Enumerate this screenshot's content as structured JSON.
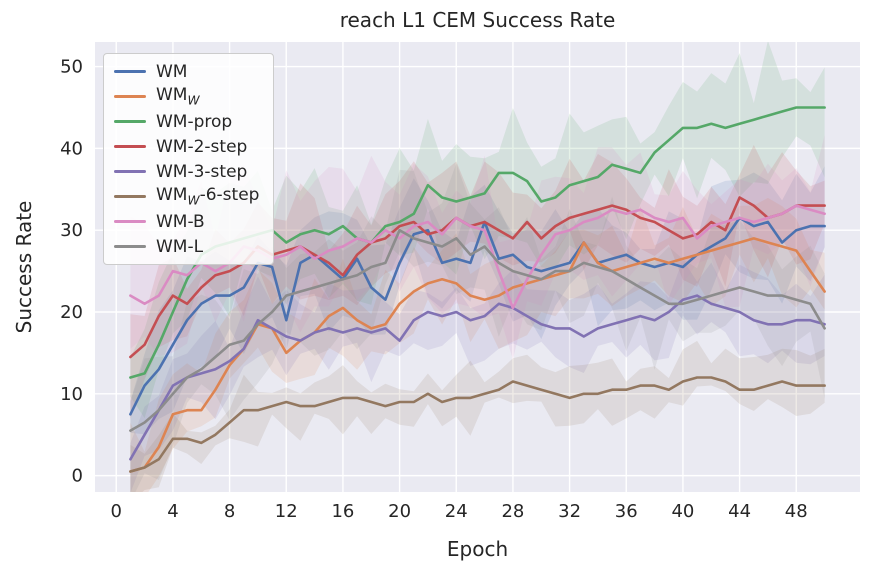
{
  "chart_data": {
    "type": "line",
    "title": "reach L1 CEM Success Rate",
    "xlabel": "Epoch",
    "ylabel": "Success Rate",
    "xlim": [
      -1.5,
      52.5
    ],
    "ylim": [
      -2,
      53
    ],
    "xticks": [
      0,
      4,
      8,
      12,
      16,
      20,
      24,
      28,
      32,
      36,
      40,
      44,
      48
    ],
    "yticks": [
      0,
      10,
      20,
      30,
      40,
      50
    ],
    "grid": true,
    "legend_position": "upper left",
    "background": "#eaeaf2",
    "grid_color": "#ffffff",
    "x": [
      1,
      2,
      3,
      4,
      5,
      6,
      7,
      8,
      9,
      10,
      11,
      12,
      13,
      14,
      15,
      16,
      17,
      18,
      19,
      20,
      21,
      22,
      23,
      24,
      25,
      26,
      27,
      28,
      29,
      30,
      31,
      32,
      33,
      34,
      35,
      36,
      37,
      38,
      39,
      40,
      41,
      42,
      43,
      44,
      45,
      46,
      47,
      48,
      49,
      50
    ],
    "series": [
      {
        "name": "WM",
        "label": {
          "main": "WM",
          "sub": "",
          "rest": ""
        },
        "color": "#4C72B0",
        "band": 5.5,
        "values": [
          7.5,
          11,
          13,
          16,
          19,
          21,
          22,
          22,
          23,
          26,
          25.5,
          19,
          26,
          27,
          25.5,
          24,
          26.5,
          23,
          21.5,
          26,
          29.5,
          30,
          26,
          26.5,
          26,
          31,
          26.5,
          27,
          25.5,
          25,
          25.5,
          26,
          28.5,
          26,
          26.5,
          27,
          26,
          25.5,
          26,
          25.5,
          27,
          28,
          29,
          31.5,
          30.5,
          31,
          28.5,
          30,
          30.5,
          30.5
        ]
      },
      {
        "name": "WM_W",
        "label": {
          "main": "WM",
          "sub": "W",
          "rest": ""
        },
        "color": "#DD8452",
        "band": 4.5,
        "values": [
          0.5,
          1,
          3.5,
          7.5,
          8,
          8,
          10.5,
          13.5,
          15.5,
          18.5,
          18,
          15,
          16.5,
          17.5,
          19.5,
          20.5,
          19,
          18,
          18.5,
          21,
          22.5,
          23.5,
          24,
          23.5,
          22,
          21.5,
          22,
          23,
          23.5,
          24,
          24.5,
          25,
          28.5,
          26,
          25,
          25.5,
          26,
          26.5,
          26,
          26.5,
          27,
          27.5,
          28,
          28.5,
          29,
          28.5,
          28,
          27.5,
          25,
          22.5
        ]
      },
      {
        "name": "WM-prop",
        "label": {
          "main": "WM-prop",
          "sub": "",
          "rest": ""
        },
        "color": "#55A868",
        "band": 6,
        "values": [
          12,
          12.5,
          16,
          20,
          24,
          27,
          28,
          28.5,
          29,
          29.5,
          30,
          28.5,
          29.5,
          30,
          29.5,
          30.5,
          29,
          28.5,
          30.5,
          31,
          32,
          35.5,
          34,
          33.5,
          34,
          34.5,
          37,
          37,
          36,
          33.5,
          34,
          35.5,
          36,
          36.5,
          38,
          37.5,
          37,
          39.5,
          41,
          42.5,
          42.5,
          43,
          42.5,
          43,
          43.5,
          44,
          44.5,
          45,
          45,
          45
        ]
      },
      {
        "name": "WM-2-step",
        "label": {
          "main": "WM-2-step",
          "sub": "",
          "rest": ""
        },
        "color": "#C44E52",
        "band": 5,
        "values": [
          14.5,
          16,
          19.5,
          22,
          21,
          23,
          24.5,
          25,
          26,
          28,
          27,
          27.5,
          28,
          27,
          26,
          24.5,
          27,
          28.5,
          29,
          30.5,
          31,
          29.5,
          30,
          31.5,
          30.5,
          31,
          30,
          29,
          31,
          29,
          30.5,
          31.5,
          32,
          32.5,
          33,
          32.5,
          31.5,
          31,
          30,
          29,
          29.5,
          31,
          30,
          34,
          33,
          31.5,
          32,
          33,
          33,
          33
        ]
      },
      {
        "name": "WM-3-step",
        "label": {
          "main": "WM-3-step",
          "sub": "",
          "rest": ""
        },
        "color": "#8172B3",
        "band": 4,
        "values": [
          2,
          5,
          8,
          11,
          12,
          12.5,
          13,
          14,
          15.5,
          19,
          18,
          17,
          16.5,
          17.5,
          18,
          17.5,
          18,
          17.5,
          18,
          16.5,
          19,
          20,
          19.5,
          20,
          19,
          19.5,
          21,
          20.5,
          19.5,
          18.5,
          18,
          18,
          17,
          18,
          18.5,
          19,
          19.5,
          19,
          20,
          21.5,
          22,
          21,
          20.5,
          20,
          19,
          18.5,
          18.5,
          19,
          19,
          18.5
        ]
      },
      {
        "name": "WM_W-6-step",
        "label": {
          "main": "WM",
          "sub": "W",
          "rest": "-6-step"
        },
        "color": "#937860",
        "band": 3,
        "values": [
          0.5,
          1,
          2,
          4.5,
          4.5,
          4,
          5,
          6.5,
          8,
          8,
          8.5,
          9,
          8.5,
          8.5,
          9,
          9.5,
          9.5,
          9,
          8.5,
          9,
          9,
          10,
          9,
          9.5,
          9.5,
          10,
          10.5,
          11.5,
          11,
          10.5,
          10,
          9.5,
          10,
          10,
          10.5,
          10.5,
          11,
          11,
          10.5,
          11.5,
          12,
          12,
          11.5,
          10.5,
          10.5,
          11,
          11.5,
          11,
          11,
          11
        ]
      },
      {
        "name": "WM-B",
        "label": {
          "main": "WM-B",
          "sub": "",
          "rest": ""
        },
        "color": "#DA8BC3",
        "band": 7,
        "values": [
          22,
          21,
          22,
          25,
          24.5,
          26,
          25,
          26,
          28,
          27.5,
          26.5,
          27,
          28,
          26.5,
          27.5,
          28,
          29,
          28.5,
          30,
          29,
          30.5,
          31,
          29.5,
          31.5,
          30.5,
          30,
          25,
          20.5,
          24,
          27,
          29.5,
          30,
          31,
          31.5,
          32.5,
          32,
          32.5,
          31.5,
          31,
          31.5,
          29,
          30.5,
          31,
          31.5,
          31,
          31.5,
          32,
          33,
          32.5,
          32
        ]
      },
      {
        "name": "WM-L",
        "label": {
          "main": "WM-L",
          "sub": "",
          "rest": ""
        },
        "color": "#8C8C8C",
        "band": 6,
        "values": [
          5.5,
          6.5,
          8,
          10,
          12,
          13,
          14.5,
          16,
          16.5,
          18.5,
          20,
          22,
          22.5,
          23,
          23.5,
          24,
          24.5,
          25.5,
          26,
          30,
          29,
          28.5,
          28,
          29,
          27,
          28,
          26,
          25,
          24.5,
          24,
          25,
          25,
          26,
          25.5,
          25,
          24,
          23,
          22,
          21,
          21,
          21.5,
          22,
          22.5,
          23,
          22.5,
          22,
          22,
          21.5,
          21,
          18
        ]
      }
    ]
  }
}
